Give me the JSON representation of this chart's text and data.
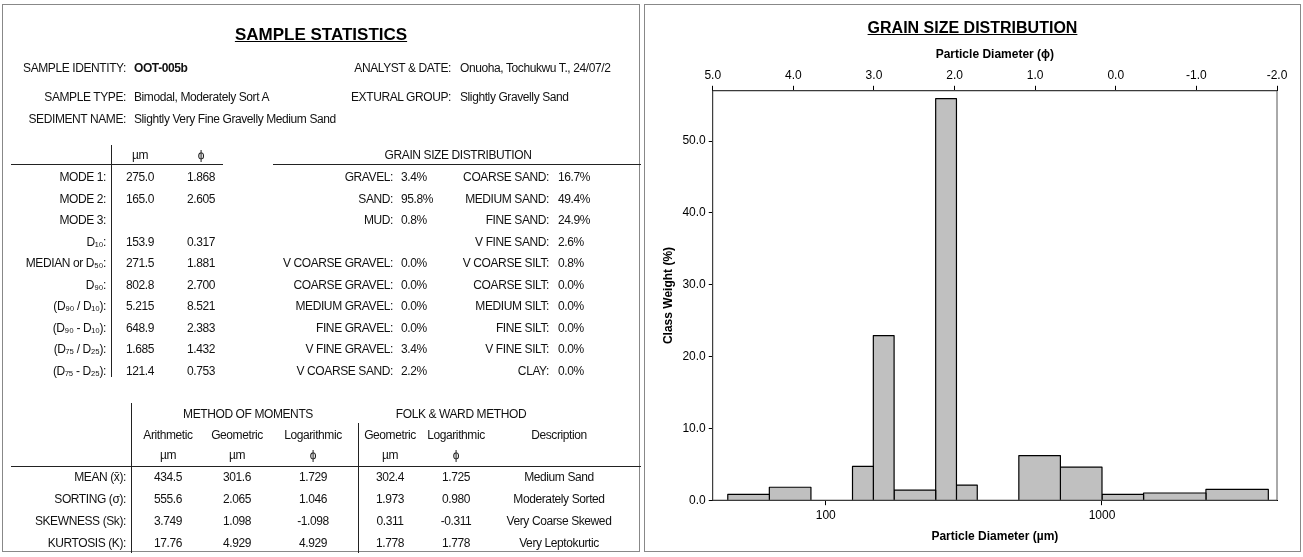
{
  "chart_data": [
    {
      "type": "other",
      "title": "SAMPLE STATISTICS",
      "annotations": [
        "SAMPLE IDENTITY:",
        "OOT-005b",
        "ANALYST & DATE:",
        "Onuoha, Tochukwu T., 24/07/2",
        "SAMPLE TYPE:",
        "Bimodal, Moderately Sort A",
        "EXTURAL GROUP:",
        "Slightly Gravelly Sand",
        "SEDIMENT NAME:",
        "Slightly Very Fine Gravelly Medium Sand",
        "µm",
        "ϕ",
        "GRAIN SIZE DISTRIBUTION",
        "MODE 1:",
        "275.0",
        "1.868",
        "GRAVEL:",
        "3.4%",
        "COARSE SAND:",
        "16.7%",
        "MODE 2:",
        "165.0",
        "2.605",
        "SAND:",
        "95.8%",
        "MEDIUM SAND:",
        "49.4%",
        "MODE 3:",
        "MUD:",
        "0.8%",
        "FINE SAND:",
        "24.9%",
        "D₁₀:",
        "153.9",
        "0.317",
        "V FINE SAND:",
        "2.6%",
        "MEDIAN or D₅₀:",
        "271.5",
        "1.881",
        "V COARSE GRAVEL:",
        "0.0%",
        "V COARSE SILT:",
        "0.8%",
        "D₉₀:",
        "802.8",
        "2.700",
        "COARSE GRAVEL:",
        "0.0%",
        "COARSE SILT:",
        "0.0%",
        "(D₉₀ / D₁₀):",
        "5.215",
        "8.521",
        "MEDIUM GRAVEL:",
        "0.0%",
        "MEDIUM SILT:",
        "0.0%",
        "(D₉₀ - D₁₀):",
        "648.9",
        "2.383",
        "FINE GRAVEL:",
        "0.0%",
        "FINE SILT:",
        "0.0%",
        "(D₇₅ / D₂₅):",
        "1.685",
        "1.432",
        "V FINE GRAVEL:",
        "3.4%",
        "V FINE SILT:",
        "0.0%",
        "(D₇₅ - D₂₅):",
        "121.4",
        "0.753",
        "V COARSE SAND:",
        "2.2%",
        "CLAY:",
        "0.0%",
        "METHOD OF MOMENTS",
        "FOLK & WARD METHOD",
        "Arithmetic",
        "Geometric",
        "Logarithmic",
        "Geometric",
        "Logarithmic",
        "Description",
        "µm",
        "µm",
        "ϕ",
        "µm",
        "ϕ",
        "MEAN (x̄):",
        "434.5",
        "301.6",
        "1.729",
        "302.4",
        "1.725",
        "Medium Sand",
        "SORTING (σ):",
        "555.6",
        "2.065",
        "1.046",
        "1.973",
        "0.980",
        "Moderately Sorted",
        "SKEWNESS (Sk):",
        "3.749",
        "1.098",
        "-1.098",
        "0.311",
        "-0.311",
        "Very Coarse Skewed",
        "KURTOSIS (K):",
        "17.76",
        "4.929",
        "4.929",
        "1.778",
        "1.778",
        "Very Leptokurtic"
      ]
    },
    {
      "type": "histogram",
      "title": "GRAIN SIZE DISTRIBUTION",
      "xlabel": "Particle Diameter (µm)",
      "x2label": "Particle Diameter (ϕ)",
      "ylabel": "Class Weight (%)",
      "log": "x",
      "color": "#c0c0c0",
      "bins": [
        44.2,
        62.5,
        88.4,
        125,
        148.7,
        176.8,
        250,
        297.3,
        353.6,
        500,
        707.1,
        1000,
        1414,
        2378,
        4000
      ],
      "values": [
        0.8,
        1.8,
        null,
        4.7,
        22.9,
        1.4,
        55.9,
        2.1,
        null,
        6.2,
        4.6,
        0.8,
        1.0,
        1.5
      ],
      "xlim": [
        39,
        4300
      ],
      "xticks": [
        100,
        1000
      ],
      "x2lim": [
        5,
        -2
      ],
      "x2ticks": [
        {
          "value": 5,
          "label": "5.0"
        },
        {
          "value": 4,
          "label": "4.0"
        },
        {
          "value": 3,
          "label": "3.0"
        },
        {
          "value": 2,
          "label": "2.0"
        },
        {
          "value": 1,
          "label": "1.0"
        },
        {
          "value": 0,
          "label": "0.0"
        },
        {
          "value": -1,
          "label": "-1.0"
        },
        {
          "value": -2,
          "label": "-2.0"
        }
      ],
      "ylim": [
        0,
        57
      ],
      "yticks": [
        {
          "value": 0,
          "label": "0.0"
        },
        {
          "value": 10,
          "label": "10.0"
        },
        {
          "value": 20,
          "label": "20.0"
        },
        {
          "value": 30,
          "label": "30.0"
        },
        {
          "value": 40,
          "label": "40.0"
        },
        {
          "value": 50,
          "label": "50.0"
        }
      ]
    }
  ]
}
